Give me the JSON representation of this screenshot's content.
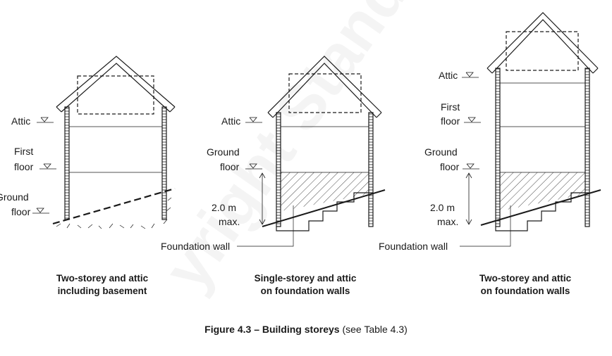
{
  "watermark": "yright Standards",
  "panels": [
    {
      "labels": {
        "attic": "Attic",
        "first_floor": [
          "First",
          "floor"
        ],
        "ground_floor": [
          "Ground",
          "floor"
        ]
      },
      "caption": [
        "Two-storey and attic",
        "including basement"
      ]
    },
    {
      "labels": {
        "attic": "Attic",
        "ground_floor": [
          "Ground",
          "floor"
        ],
        "height": [
          "2.0 m",
          "max."
        ],
        "foundation": "Foundation wall"
      },
      "caption": [
        "Single-storey and attic",
        "on foundation walls"
      ]
    },
    {
      "labels": {
        "attic": "Attic",
        "first_floor": [
          "First",
          "floor"
        ],
        "ground_floor": [
          "Ground",
          "floor"
        ],
        "height": [
          "2.0 m",
          "max."
        ],
        "foundation": "Foundation wall"
      },
      "caption": [
        "Two-storey and attic",
        "on foundation walls"
      ]
    }
  ],
  "figure": {
    "title": "Figure 4.3 – Building storeys",
    "reference": "(see Table 4.3)"
  }
}
